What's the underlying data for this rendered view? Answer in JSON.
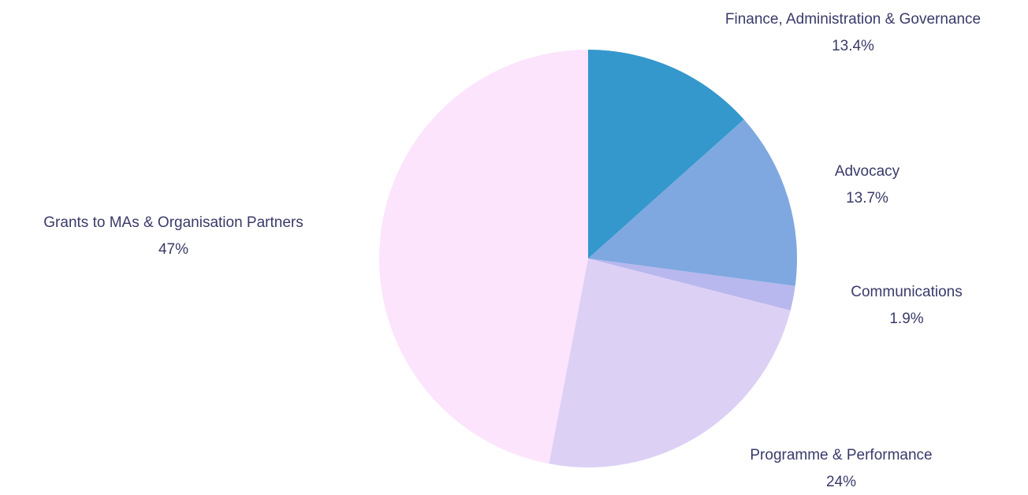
{
  "chart_data": {
    "type": "pie",
    "categories": [
      "Finance, Administration & Governance",
      "Advocacy",
      "Communications",
      "Programme & Performance",
      "Grants to MAs & Organisation Partners"
    ],
    "values": [
      13.4,
      13.7,
      1.9,
      24,
      47
    ],
    "value_labels": [
      "13.4%",
      "13.7%",
      "1.9%",
      "24%",
      "47%"
    ],
    "colors": [
      "#3498cc",
      "#7fa8e0",
      "#b8b8ee",
      "#ddd0f5",
      "#fbe4fc"
    ]
  }
}
